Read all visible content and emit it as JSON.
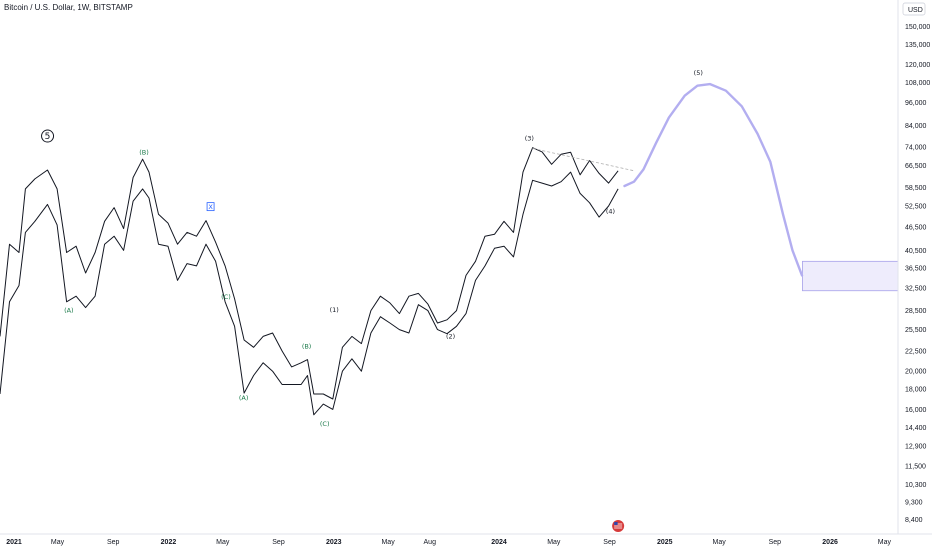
{
  "header": {
    "symbol_title": "Bitcoin / U.S. Dollar, 1W, BITSTAMP",
    "currency_label": "USD"
  },
  "colors": {
    "price_line": "#131722",
    "wave_green": "#1b7a4a",
    "wave_black": "#131722",
    "projection": "#b3aef0",
    "target_zone_fill": "#eeecfc",
    "target_zone_border": "#a7a1ea",
    "trendline": "#b0b0b0",
    "x_marker": "#2962ff",
    "currency_flag_badge": "#d63a3a"
  },
  "icons": {
    "top_label": "circled-five-icon",
    "flag_badge": "us-flag-icon"
  },
  "chart_data": {
    "type": "line",
    "title": "Bitcoin / U.S. Dollar, 1W, BITSTAMP",
    "xlabel": "",
    "ylabel": "USD",
    "y_scale": "log",
    "ylim": [
      8000,
      165000
    ],
    "xlim": [
      "2020-12-25",
      "2026-05-31"
    ],
    "grid": false,
    "y_ticks": [
      "150,000",
      "135,000",
      "120,000",
      "108,000",
      "96,000",
      "84,000",
      "74,000",
      "66,500",
      "58,500",
      "52,500",
      "46,500",
      "40,500",
      "36,500",
      "32,500",
      "28,500",
      "25,500",
      "22,500",
      "20,000",
      "18,000",
      "16,000",
      "14,400",
      "12,900",
      "11,500",
      "10,300",
      "9,300",
      "8,400"
    ],
    "x_ticks": [
      {
        "date": "2021-01-01",
        "label": "2021",
        "major": true
      },
      {
        "date": "2021-05-01",
        "label": "May",
        "major": false
      },
      {
        "date": "2021-09-01",
        "label": "Sep",
        "major": false
      },
      {
        "date": "2022-01-01",
        "label": "2022",
        "major": true
      },
      {
        "date": "2022-05-01",
        "label": "May",
        "major": false
      },
      {
        "date": "2022-09-01",
        "label": "Sep",
        "major": false
      },
      {
        "date": "2023-01-01",
        "label": "2023",
        "major": true
      },
      {
        "date": "2023-05-01",
        "label": "May",
        "major": false
      },
      {
        "date": "2023-08-01",
        "label": "Aug",
        "major": false
      },
      {
        "date": "2024-01-01",
        "label": "2024",
        "major": true
      },
      {
        "date": "2024-05-01",
        "label": "May",
        "major": false
      },
      {
        "date": "2024-09-01",
        "label": "Sep",
        "major": false
      },
      {
        "date": "2025-01-01",
        "label": "2025",
        "major": true
      },
      {
        "date": "2025-05-01",
        "label": "May",
        "major": false
      },
      {
        "date": "2025-09-01",
        "label": "Sep",
        "major": false
      },
      {
        "date": "2026-01-01",
        "label": "2026",
        "major": true
      },
      {
        "date": "2026-05-01",
        "label": "May",
        "major": false
      }
    ],
    "series": [
      {
        "style": "weekly-high",
        "points": [
          [
            "2020-12-25",
            24500
          ],
          [
            "2021-01-15",
            42000
          ],
          [
            "2021-02-05",
            40000
          ],
          [
            "2021-02-19",
            58000
          ],
          [
            "2021-03-12",
            61500
          ],
          [
            "2021-04-09",
            64800
          ],
          [
            "2021-04-30",
            58000
          ],
          [
            "2021-05-21",
            40000
          ],
          [
            "2021-06-11",
            41500
          ],
          [
            "2021-07-02",
            35500
          ],
          [
            "2021-07-23",
            40000
          ],
          [
            "2021-08-13",
            48000
          ],
          [
            "2021-09-03",
            52000
          ],
          [
            "2021-09-24",
            46000
          ],
          [
            "2021-10-15",
            62000
          ],
          [
            "2021-11-05",
            69000
          ],
          [
            "2021-11-19",
            64000
          ],
          [
            "2021-12-10",
            50000
          ],
          [
            "2021-12-31",
            47500
          ],
          [
            "2022-01-21",
            42000
          ],
          [
            "2022-02-11",
            45000
          ],
          [
            "2022-03-04",
            44000
          ],
          [
            "2022-03-25",
            48200
          ],
          [
            "2022-04-15",
            42500
          ],
          [
            "2022-05-06",
            37000
          ],
          [
            "2022-05-27",
            30500
          ],
          [
            "2022-06-17",
            24000
          ],
          [
            "2022-07-08",
            23000
          ],
          [
            "2022-07-29",
            24500
          ],
          [
            "2022-08-19",
            25000
          ],
          [
            "2022-09-09",
            22500
          ],
          [
            "2022-09-30",
            20500
          ],
          [
            "2022-10-21",
            21000
          ],
          [
            "2022-11-04",
            21400
          ],
          [
            "2022-11-18",
            17500
          ],
          [
            "2022-12-09",
            17500
          ],
          [
            "2022-12-30",
            17000
          ],
          [
            "2023-01-20",
            23000
          ],
          [
            "2023-02-10",
            24500
          ],
          [
            "2023-03-03",
            23500
          ],
          [
            "2023-03-24",
            28500
          ],
          [
            "2023-04-14",
            31000
          ],
          [
            "2023-05-05",
            29800
          ],
          [
            "2023-05-26",
            28000
          ],
          [
            "2023-06-16",
            31000
          ],
          [
            "2023-07-07",
            31500
          ],
          [
            "2023-07-28",
            29600
          ],
          [
            "2023-08-18",
            26500
          ],
          [
            "2023-09-08",
            27000
          ],
          [
            "2023-09-29",
            28500
          ],
          [
            "2023-10-20",
            35000
          ],
          [
            "2023-11-10",
            38000
          ],
          [
            "2023-12-01",
            44000
          ],
          [
            "2023-12-22",
            44500
          ],
          [
            "2024-01-12",
            48000
          ],
          [
            "2024-02-02",
            45000
          ],
          [
            "2024-02-23",
            64000
          ],
          [
            "2024-03-15",
            73800
          ],
          [
            "2024-04-05",
            72000
          ],
          [
            "2024-04-26",
            67000
          ],
          [
            "2024-05-17",
            71000
          ],
          [
            "2024-06-07",
            71900
          ],
          [
            "2024-06-28",
            63000
          ],
          [
            "2024-07-19",
            68500
          ],
          [
            "2024-08-09",
            63500
          ],
          [
            "2024-08-30",
            60000
          ],
          [
            "2024-09-20",
            64500
          ]
        ]
      },
      {
        "style": "weekly-low",
        "points": [
          [
            "2020-12-25",
            17500
          ],
          [
            "2021-01-15",
            30000
          ],
          [
            "2021-02-05",
            33000
          ],
          [
            "2021-02-19",
            45000
          ],
          [
            "2021-03-12",
            48000
          ],
          [
            "2021-04-09",
            53000
          ],
          [
            "2021-04-30",
            47000
          ],
          [
            "2021-05-21",
            30000
          ],
          [
            "2021-06-11",
            31000
          ],
          [
            "2021-07-02",
            29000
          ],
          [
            "2021-07-23",
            31000
          ],
          [
            "2021-08-13",
            42000
          ],
          [
            "2021-09-03",
            44000
          ],
          [
            "2021-09-24",
            40500
          ],
          [
            "2021-10-15",
            54000
          ],
          [
            "2021-11-05",
            58000
          ],
          [
            "2021-11-19",
            55000
          ],
          [
            "2021-12-10",
            42000
          ],
          [
            "2021-12-31",
            41500
          ],
          [
            "2022-01-21",
            34000
          ],
          [
            "2022-02-11",
            37500
          ],
          [
            "2022-03-04",
            37000
          ],
          [
            "2022-03-25",
            42000
          ],
          [
            "2022-04-15",
            38000
          ],
          [
            "2022-05-06",
            30000
          ],
          [
            "2022-05-27",
            26000
          ],
          [
            "2022-06-17",
            17600
          ],
          [
            "2022-07-08",
            19500
          ],
          [
            "2022-07-29",
            21000
          ],
          [
            "2022-08-19",
            20000
          ],
          [
            "2022-09-09",
            18500
          ],
          [
            "2022-09-30",
            18500
          ],
          [
            "2022-10-21",
            18500
          ],
          [
            "2022-11-04",
            19500
          ],
          [
            "2022-11-18",
            15500
          ],
          [
            "2022-12-09",
            16500
          ],
          [
            "2022-12-30",
            16000
          ],
          [
            "2023-01-20",
            20000
          ],
          [
            "2023-02-10",
            21500
          ],
          [
            "2023-03-03",
            20000
          ],
          [
            "2023-03-24",
            25000
          ],
          [
            "2023-04-14",
            27500
          ],
          [
            "2023-05-05",
            26500
          ],
          [
            "2023-05-26",
            25500
          ],
          [
            "2023-06-16",
            25000
          ],
          [
            "2023-07-07",
            29500
          ],
          [
            "2023-07-28",
            28500
          ],
          [
            "2023-08-18",
            25500
          ],
          [
            "2023-09-08",
            24900
          ],
          [
            "2023-09-29",
            26000
          ],
          [
            "2023-10-20",
            28000
          ],
          [
            "2023-11-10",
            34000
          ],
          [
            "2023-12-01",
            37000
          ],
          [
            "2023-12-22",
            41000
          ],
          [
            "2024-01-12",
            41500
          ],
          [
            "2024-02-02",
            39000
          ],
          [
            "2024-02-23",
            50000
          ],
          [
            "2024-03-15",
            61000
          ],
          [
            "2024-04-05",
            60000
          ],
          [
            "2024-04-26",
            59000
          ],
          [
            "2024-05-17",
            60500
          ],
          [
            "2024-06-07",
            64000
          ],
          [
            "2024-06-28",
            56500
          ],
          [
            "2024-07-19",
            53500
          ],
          [
            "2024-08-09",
            49200
          ],
          [
            "2024-08-30",
            52500
          ],
          [
            "2024-09-20",
            58000
          ]
        ]
      },
      {
        "style": "projection",
        "points": [
          [
            "2024-10-04",
            59000
          ],
          [
            "2024-10-25",
            60500
          ],
          [
            "2024-11-15",
            65000
          ],
          [
            "2024-12-13",
            76000
          ],
          [
            "2025-01-10",
            88000
          ],
          [
            "2025-02-14",
            100000
          ],
          [
            "2025-03-14",
            106000
          ],
          [
            "2025-04-11",
            107000
          ],
          [
            "2025-05-16",
            103000
          ],
          [
            "2025-06-20",
            94000
          ],
          [
            "2025-07-25",
            80000
          ],
          [
            "2025-08-22",
            68000
          ],
          [
            "2025-09-19",
            50000
          ],
          [
            "2025-10-10",
            40500
          ],
          [
            "2025-10-31",
            35000
          ]
        ]
      }
    ],
    "trendline": {
      "from": [
        "2024-03-15",
        73500
      ],
      "to": [
        "2024-10-25",
        64500
      ]
    },
    "target_zone": {
      "date_from": "2025-11-01",
      "date_to": "2026-06-30",
      "price_from": 32000,
      "price_to": 38000
    },
    "annotations": [
      {
        "text": "(A)",
        "date": "2021-05-26",
        "price": 28200,
        "color": "green"
      },
      {
        "text": "(B)",
        "date": "2021-11-08",
        "price": 71000,
        "color": "green"
      },
      {
        "text": "(C)",
        "date": "2022-05-08",
        "price": 30500,
        "color": "green"
      },
      {
        "text": "X",
        "date": "2022-04-04",
        "price": 52000,
        "color": "box"
      },
      {
        "text": "(A)",
        "date": "2022-06-16",
        "price": 16900,
        "color": "green"
      },
      {
        "text": "(B)",
        "date": "2022-11-02",
        "price": 22800,
        "color": "green"
      },
      {
        "text": "(C)",
        "date": "2022-12-12",
        "price": 14500,
        "color": "green"
      },
      {
        "text": "(1)",
        "date": "2023-01-02",
        "price": 28300,
        "color": "black"
      },
      {
        "text": "(2)",
        "date": "2023-09-16",
        "price": 24200,
        "color": "black"
      },
      {
        "text": "(3)",
        "date": "2024-03-08",
        "price": 77000,
        "color": "black"
      },
      {
        "text": "(4)",
        "date": "2024-09-03",
        "price": 50300,
        "color": "black"
      },
      {
        "text": "(5)",
        "date": "2025-03-16",
        "price": 113000,
        "color": "black"
      }
    ],
    "circled_label": {
      "text": "5",
      "date": "2021-04-09",
      "price": 79000
    }
  }
}
